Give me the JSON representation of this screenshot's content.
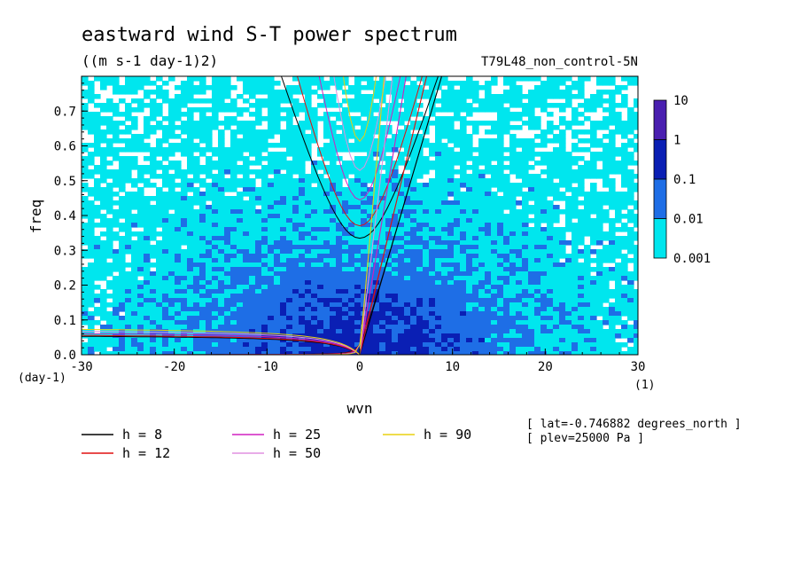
{
  "chart_data": {
    "type": "heatmap",
    "title": "eastward wind S-T power spectrum",
    "subtitle": "((m s-1 day-1)2)",
    "run_label": "T79L48_non_control-5N",
    "xlabel": "wvn",
    "ylabel": "freq",
    "x_unit": "(1)",
    "y_unit": "(day-1)",
    "xlim": [
      -30,
      30
    ],
    "ylim": [
      0,
      0.8
    ],
    "xticks": [
      "-30",
      "-20",
      "-10",
      "0",
      "10",
      "20",
      "30"
    ],
    "yticks": [
      "0.0",
      "0.1",
      "0.2",
      "0.3",
      "0.4",
      "0.5",
      "0.6",
      "0.7"
    ],
    "colorbar": {
      "labels": [
        "10",
        "1",
        "0.1",
        "0.01",
        "0.001"
      ],
      "colors": [
        "#4a1fb0",
        "#0a1fb4",
        "#1e6ee6",
        "#00e6ee"
      ]
    },
    "dispersion_curves": [
      {
        "label": "h =  8",
        "color": "#000000"
      },
      {
        "label": "h = 12",
        "color": "#e01010"
      },
      {
        "label": "h = 25",
        "color": "#d020c0"
      },
      {
        "label": "h = 50",
        "color": "#e090e0"
      },
      {
        "label": "h = 90",
        "color": "#e8d010"
      }
    ],
    "annotations": [
      "[ lat=-0.746882 degrees_north ]",
      "[ plev=25000 Pa ]"
    ]
  }
}
